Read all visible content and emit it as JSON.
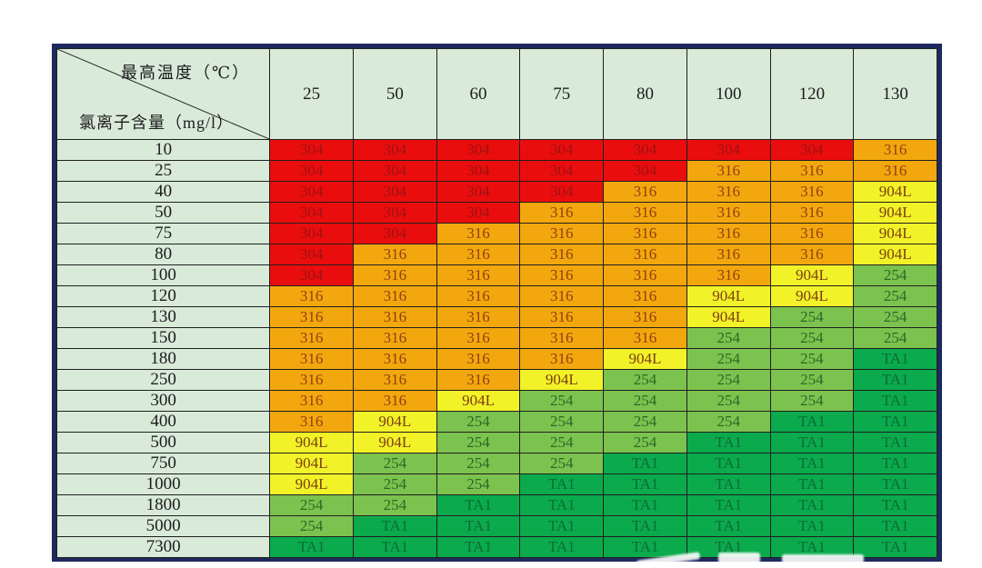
{
  "table": {
    "corner": {
      "top_label": "最高温度（℃）",
      "bottom_label": "氯离子含量（mg/l）"
    },
    "border_color": "#1e2a5e",
    "header_bg": "#d9ead9",
    "grid_color": "#1f1f1f"
  },
  "chart_data": {
    "type": "heatmap",
    "title": "",
    "xlabel": "最高温度（℃）",
    "ylabel": "氯离子含量（mg/l）",
    "columns": [
      "25",
      "50",
      "60",
      "75",
      "80",
      "100",
      "120",
      "130"
    ],
    "rows": [
      "10",
      "25",
      "40",
      "50",
      "75",
      "80",
      "100",
      "120",
      "130",
      "150",
      "180",
      "250",
      "300",
      "400",
      "500",
      "750",
      "1000",
      "1800",
      "5000",
      "7300"
    ],
    "cells": [
      [
        "304",
        "304",
        "304",
        "304",
        "304",
        "304",
        "304",
        "316"
      ],
      [
        "304",
        "304",
        "304",
        "304",
        "304",
        "316",
        "316",
        "316"
      ],
      [
        "304",
        "304",
        "304",
        "304",
        "316",
        "316",
        "316",
        "904L"
      ],
      [
        "304",
        "304",
        "304",
        "316",
        "316",
        "316",
        "316",
        "904L"
      ],
      [
        "304",
        "304",
        "316",
        "316",
        "316",
        "316",
        "316",
        "904L"
      ],
      [
        "304",
        "316",
        "316",
        "316",
        "316",
        "316",
        "316",
        "904L"
      ],
      [
        "304",
        "316",
        "316",
        "316",
        "316",
        "316",
        "904L",
        "254"
      ],
      [
        "316",
        "316",
        "316",
        "316",
        "316",
        "904L",
        "904L",
        "254"
      ],
      [
        "316",
        "316",
        "316",
        "316",
        "316",
        "904L",
        "254",
        "254"
      ],
      [
        "316",
        "316",
        "316",
        "316",
        "316",
        "254",
        "254",
        "254"
      ],
      [
        "316",
        "316",
        "316",
        "316",
        "904L",
        "254",
        "254",
        "TA1"
      ],
      [
        "316",
        "316",
        "316",
        "904L",
        "254",
        "254",
        "254",
        "TA1"
      ],
      [
        "316",
        "316",
        "904L",
        "254",
        "254",
        "254",
        "254",
        "TA1"
      ],
      [
        "316",
        "904L",
        "254",
        "254",
        "254",
        "254",
        "TA1",
        "TA1"
      ],
      [
        "904L",
        "904L",
        "254",
        "254",
        "254",
        "TA1",
        "TA1",
        "TA1"
      ],
      [
        "904L",
        "254",
        "254",
        "254",
        "TA1",
        "TA1",
        "TA1",
        "TA1"
      ],
      [
        "904L",
        "254",
        "254",
        "TA1",
        "TA1",
        "TA1",
        "TA1",
        "TA1"
      ],
      [
        "254",
        "254",
        "TA1",
        "TA1",
        "TA1",
        "TA1",
        "TA1",
        "TA1"
      ],
      [
        "254",
        "TA1",
        "TA1",
        "TA1",
        "TA1",
        "TA1",
        "TA1",
        "TA1"
      ],
      [
        "TA1",
        "TA1",
        "TA1",
        "TA1",
        "TA1",
        "TA1",
        "TA1",
        "TA1"
      ]
    ],
    "materials": {
      "304": {
        "bg": "#ea0d0d",
        "text": "#9e1212"
      },
      "316": {
        "bg": "#f3a70e",
        "text": "#8e4110"
      },
      "904L": {
        "bg": "#f2f228",
        "text": "#7c4012"
      },
      "254": {
        "bg": "#7cc24e",
        "text": "#266b26"
      },
      "TA1": {
        "bg": "#0baa4d",
        "text": "#0a6d35"
      }
    }
  }
}
